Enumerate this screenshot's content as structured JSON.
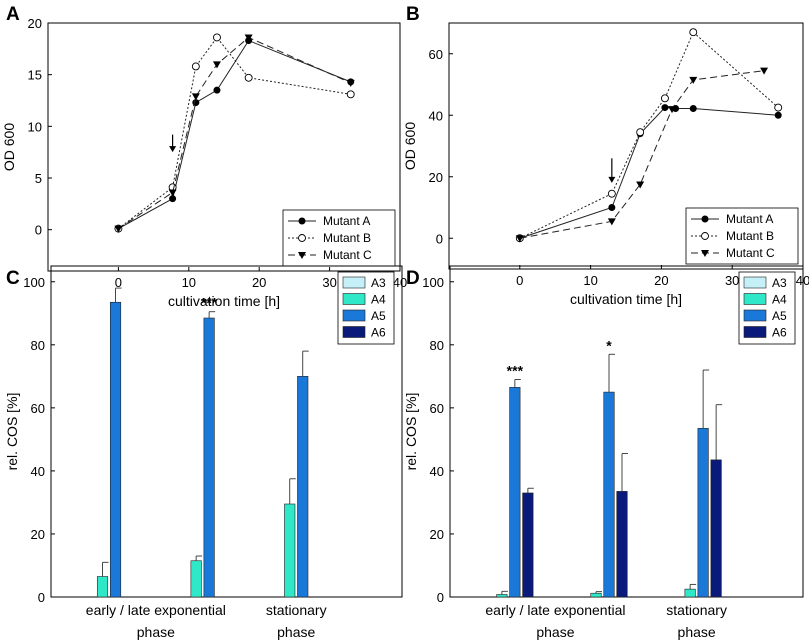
{
  "chart_data": [
    {
      "panel": "A",
      "type": "line",
      "xlabel": "cultivation time [h]",
      "ylabel": "OD 600",
      "xlim": [
        -10,
        40
      ],
      "ylim": [
        -4,
        20
      ],
      "xticks": [
        0,
        10,
        20,
        30,
        40
      ],
      "yticks": [
        0,
        5,
        10,
        15,
        20
      ],
      "legend": "bottom-right",
      "arrow": {
        "x": 7.7,
        "y_from": 9.2,
        "y_to": 7.5
      },
      "series": [
        {
          "name": "Mutant A",
          "marker": "filled-circle",
          "dash": "solid",
          "x": [
            0,
            7.7,
            11,
            14,
            18.5,
            33
          ],
          "y": [
            0.1,
            3.0,
            12.3,
            13.5,
            18.3,
            14.3
          ]
        },
        {
          "name": "Mutant B",
          "marker": "open-circle",
          "dash": "dotted",
          "x": [
            0,
            7.7,
            11,
            14,
            18.5,
            33
          ],
          "y": [
            0.1,
            4.1,
            15.8,
            18.6,
            14.7,
            13.1
          ]
        },
        {
          "name": "Mutant C",
          "marker": "down-triangle",
          "dash": "dashed",
          "x": [
            0,
            7.7,
            11,
            14,
            18.5,
            33
          ],
          "y": [
            0.1,
            3.6,
            12.9,
            16.0,
            18.6,
            14.2
          ]
        }
      ]
    },
    {
      "panel": "B",
      "type": "line",
      "xlabel": "cultivation time [h]",
      "ylabel": "OD 600",
      "xlim": [
        -10,
        40
      ],
      "ylim": [
        -10,
        70
      ],
      "xticks": [
        0,
        10,
        20,
        30,
        40
      ],
      "yticks": [
        0,
        20,
        40,
        60
      ],
      "legend": "bottom-right",
      "arrow": {
        "x": 13,
        "y_from": 26,
        "y_to": 18
      },
      "series": [
        {
          "name": "Mutant A",
          "marker": "filled-circle",
          "dash": "solid",
          "x": [
            0,
            13,
            17,
            20.5,
            22,
            24.5,
            36.5
          ],
          "y": [
            0,
            10,
            34,
            42.5,
            42.2,
            42.2,
            40
          ]
        },
        {
          "name": "Mutant B",
          "marker": "open-circle",
          "dash": "dotted",
          "x": [
            0,
            13,
            17,
            20.5,
            24.5,
            36.5
          ],
          "y": [
            0,
            14.5,
            34.5,
            45.5,
            67,
            42.5
          ]
        },
        {
          "name": "Mutant C",
          "marker": "down-triangle",
          "dash": "dashed",
          "x": [
            0,
            13,
            17,
            21.5,
            24.5,
            34.5
          ],
          "y": [
            0,
            5.5,
            17.5,
            42,
            51.5,
            54.5
          ]
        }
      ]
    },
    {
      "panel": "C",
      "type": "bar",
      "ylabel": "rel. COS [%]",
      "ylim": [
        0,
        105
      ],
      "yticks": [
        0,
        20,
        40,
        60,
        80,
        100
      ],
      "legend": "top-right",
      "category_lines": [
        {
          "lines": [
            "early / late exponential",
            "phase"
          ],
          "groups": [
            0,
            1
          ]
        },
        {
          "lines": [
            "stationary",
            "phase"
          ],
          "groups": [
            2
          ]
        }
      ],
      "series": [
        {
          "name": "A3",
          "color": "#c5f0f8",
          "values": [
            0,
            0,
            0
          ],
          "errors": [
            0,
            0,
            0
          ]
        },
        {
          "name": "A4",
          "color": "#2ee8c8",
          "values": [
            6.5,
            11.5,
            29.5
          ],
          "errors": [
            4.5,
            1.5,
            8
          ]
        },
        {
          "name": "A5",
          "color": "#1a78d8",
          "values": [
            93.5,
            88.5,
            70
          ],
          "errors": [
            4.5,
            2,
            8
          ]
        },
        {
          "name": "A6",
          "color": "#0a1a7a",
          "values": [
            0,
            0,
            0
          ],
          "errors": [
            0,
            0,
            0
          ]
        }
      ],
      "annotations": [
        {
          "text": "***",
          "group": 1,
          "series": "A5"
        }
      ]
    },
    {
      "panel": "D",
      "type": "bar",
      "ylabel": "rel. COS [%]",
      "ylim": [
        0,
        105
      ],
      "yticks": [
        0,
        20,
        40,
        60,
        80,
        100
      ],
      "legend": "top-right",
      "category_lines": [
        {
          "lines": [
            "early / late exponential",
            "phase"
          ],
          "groups": [
            0,
            1
          ]
        },
        {
          "lines": [
            "stationary",
            "phase"
          ],
          "groups": [
            2
          ]
        }
      ],
      "series": [
        {
          "name": "A3",
          "color": "#c5f0f8",
          "values": [
            0,
            0,
            0
          ],
          "errors": [
            0,
            0,
            0
          ]
        },
        {
          "name": "A4",
          "color": "#2ee8c8",
          "values": [
            0.8,
            1.2,
            2.5
          ],
          "errors": [
            1,
            0.5,
            1.5
          ]
        },
        {
          "name": "A5",
          "color": "#1a78d8",
          "values": [
            66.5,
            65,
            53.5
          ],
          "errors": [
            2.5,
            12,
            18.5
          ]
        },
        {
          "name": "A6",
          "color": "#0a1a7a",
          "values": [
            33,
            33.5,
            43.5
          ],
          "errors": [
            1.5,
            12,
            17.5
          ]
        }
      ],
      "annotations": [
        {
          "text": "***",
          "group": 0,
          "series": "A5"
        },
        {
          "text": "*",
          "group": 1,
          "series": "A5"
        }
      ]
    }
  ]
}
